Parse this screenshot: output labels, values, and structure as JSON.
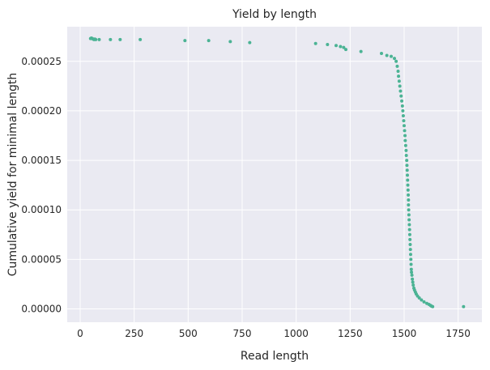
{
  "chart_data": {
    "type": "scatter",
    "title": "Yield by length",
    "xlabel": "Read length",
    "ylabel": "Cumulative yield for minimal length",
    "xlim": [
      -60,
      1860
    ],
    "ylim": [
      -1.35e-05,
      0.000285
    ],
    "xticks": [
      0,
      250,
      500,
      750,
      1000,
      1250,
      1500,
      1750
    ],
    "xtick_labels": [
      "0",
      "250",
      "500",
      "750",
      "1000",
      "1250",
      "1500",
      "1750"
    ],
    "yticks": [
      0,
      5e-05,
      0.0001,
      0.00015,
      0.0002,
      0.00025
    ],
    "ytick_labels": [
      "0.00000",
      "0.00005",
      "0.00010",
      "0.00015",
      "0.00020",
      "0.00025"
    ],
    "grid": true,
    "colors": {
      "background": "#eaeaf2",
      "grid": "#ffffff",
      "marker": "#4bb394"
    },
    "series": [
      {
        "x": [
          48,
          52,
          56,
          60,
          64,
          68,
          72,
          88,
          140,
          185,
          278,
          485,
          595,
          695,
          785,
          1090,
          1145,
          1185,
          1205,
          1220,
          1230,
          1300,
          1395,
          1420,
          1440,
          1455,
          1463,
          1468,
          1472,
          1474,
          1477,
          1480,
          1483,
          1486,
          1489,
          1492,
          1494,
          1496,
          1498,
          1500,
          1502,
          1504,
          1505,
          1507,
          1509,
          1510,
          1512,
          1513,
          1514,
          1515,
          1516,
          1517,
          1518,
          1519,
          1520,
          1520,
          1521,
          1522,
          1523,
          1524,
          1525,
          1526,
          1527,
          1528,
          1529,
          1530,
          1531,
          1532,
          1533,
          1534,
          1536,
          1538,
          1540,
          1542,
          1545,
          1548,
          1552,
          1556,
          1562,
          1570,
          1580,
          1592,
          1605,
          1615,
          1622,
          1627,
          1632,
          1775
        ],
        "y": [
          0.000273,
          0.0002735,
          0.000273,
          0.0002725,
          0.000272,
          0.0002725,
          0.000272,
          0.000272,
          0.000272,
          0.000272,
          0.000272,
          0.000271,
          0.000271,
          0.00027,
          0.000269,
          0.000268,
          0.000267,
          0.000266,
          0.000265,
          0.000264,
          0.000262,
          0.00026,
          0.000258,
          0.000256,
          0.000255,
          0.000253,
          0.00025,
          0.000245,
          0.00024,
          0.000235,
          0.00023,
          0.000225,
          0.00022,
          0.000215,
          0.00021,
          0.000205,
          0.0002,
          0.000195,
          0.00019,
          0.000185,
          0.00018,
          0.000175,
          0.00017,
          0.000165,
          0.00016,
          0.000155,
          0.00015,
          0.000145,
          0.00014,
          0.000135,
          0.00013,
          0.000125,
          0.00012,
          0.000115,
          0.00011,
          0.000105,
          0.0001,
          9.5e-05,
          9e-05,
          8.5e-05,
          8e-05,
          7.5e-05,
          7e-05,
          6.5e-05,
          6e-05,
          5.5e-05,
          5e-05,
          4.5e-05,
          4e-05,
          3.7e-05,
          3.4e-05,
          3e-05,
          2.7e-05,
          2.4e-05,
          2.1e-05,
          1.9e-05,
          1.7e-05,
          1.5e-05,
          1.3e-05,
          1.1e-05,
          9e-06,
          7e-06,
          5.5e-06,
          4.5e-06,
          3.5e-06,
          2.8e-06,
          2.2e-06,
          2.2e-06
        ]
      }
    ]
  }
}
